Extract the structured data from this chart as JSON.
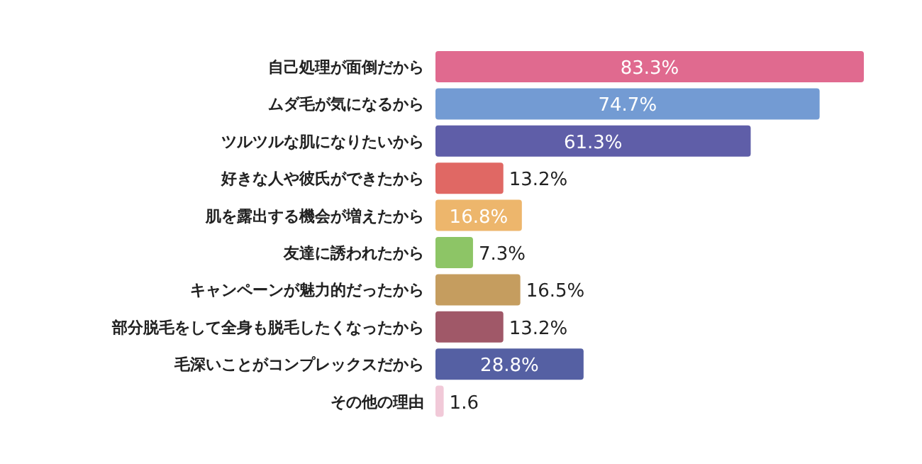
{
  "chart_data": {
    "type": "bar",
    "orientation": "horizontal",
    "categories": [
      "自己処理が面倒だから",
      "ムダ毛が気になるから",
      "ツルツルな肌になりたいから",
      "好きな人や彼氏ができたから",
      "肌を露出する機会が増えたから",
      "友達に誘われたから",
      "キャンペーンが魅力的だったから",
      "部分脱毛をして全身も脱毛したくなったから",
      "毛深いことがコンプレックスだから",
      "その他の理由"
    ],
    "values": [
      83.3,
      74.7,
      61.3,
      13.2,
      16.8,
      7.3,
      16.5,
      13.2,
      28.8,
      1.6
    ],
    "colors": [
      "#e06a8f",
      "#739bd3",
      "#5f5ea8",
      "#e06864",
      "#edb66c",
      "#8dc566",
      "#c59d5f",
      "#a05868",
      "#5560a3",
      "#f1c9d8"
    ],
    "value_labels": [
      "83.3%",
      "74.7%",
      "61.3%",
      "13.2%",
      "16.8%",
      "7.3%",
      "16.5%",
      "13.2%",
      "28.8%",
      "1.6"
    ]
  }
}
